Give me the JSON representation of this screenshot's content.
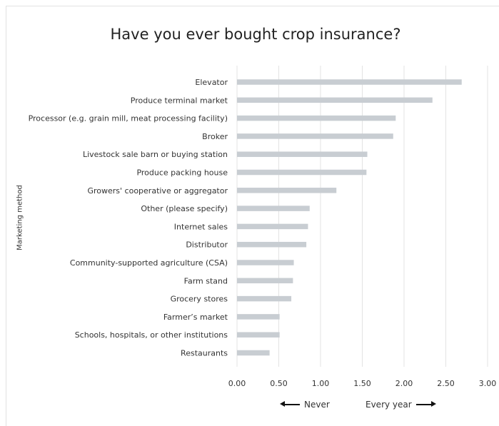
{
  "chart_data": {
    "type": "bar",
    "orientation": "horizontal",
    "title": "Have you ever bought crop insurance?",
    "xlabel": "",
    "ylabel": "Marketing method",
    "xlim": [
      0,
      3
    ],
    "x_ticks": [
      "0.00",
      "0.50",
      "1.00",
      "1.50",
      "2.00",
      "2.50",
      "3.00"
    ],
    "grid": true,
    "bar_color": "#c8cdd2",
    "categories": [
      "Elevator",
      "Produce terminal market",
      "Processor (e.g. grain mill, meat processing facility)",
      "Broker",
      "Livestock sale barn or buying station",
      "Produce packing house",
      "Growers' cooperative or aggregator",
      "Other (please specify)",
      "Internet sales",
      "Distributor",
      "Community-supported agriculture (CSA)",
      "Farm stand",
      "Grocery stores",
      "Farmer’s market",
      "Schools, hospitals, or other institutions",
      "Restaurants"
    ],
    "values": [
      2.69,
      2.34,
      1.9,
      1.87,
      1.56,
      1.55,
      1.19,
      0.87,
      0.85,
      0.83,
      0.68,
      0.67,
      0.65,
      0.51,
      0.51,
      0.39
    ],
    "annotations": {
      "left_arrow_label": "Never",
      "right_arrow_label": "Every year"
    }
  }
}
